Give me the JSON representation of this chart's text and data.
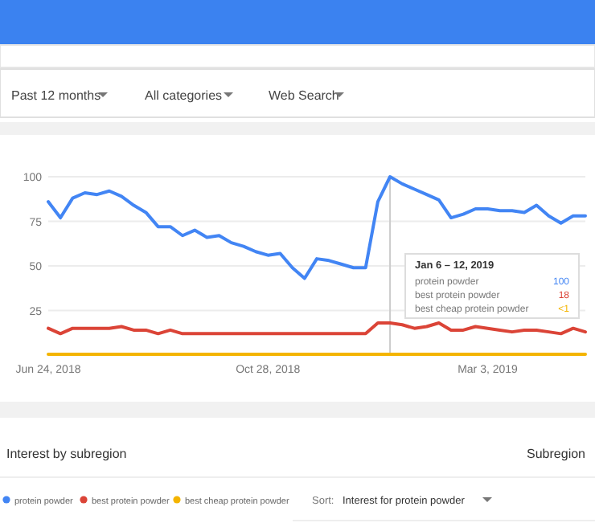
{
  "chart_data": {
    "type": "line",
    "x": [
      "2018-06-24",
      "2018-07-01",
      "2018-07-08",
      "2018-07-15",
      "2018-07-22",
      "2018-07-29",
      "2018-08-05",
      "2018-08-12",
      "2018-08-19",
      "2018-08-26",
      "2018-09-02",
      "2018-09-09",
      "2018-09-16",
      "2018-09-23",
      "2018-09-30",
      "2018-10-07",
      "2018-10-14",
      "2018-10-21",
      "2018-10-28",
      "2018-11-04",
      "2018-11-11",
      "2018-11-18",
      "2018-11-25",
      "2018-12-02",
      "2018-12-09",
      "2018-12-16",
      "2018-12-23",
      "2018-12-30",
      "2019-01-06",
      "2019-01-13",
      "2019-01-20",
      "2019-01-27",
      "2019-02-03",
      "2019-02-10",
      "2019-02-17",
      "2019-02-24",
      "2019-03-03",
      "2019-03-10",
      "2019-03-17",
      "2019-03-24",
      "2019-03-31",
      "2019-04-07",
      "2019-04-14",
      "2019-04-21",
      "2019-04-28"
    ],
    "series": [
      {
        "name": "protein powder",
        "color": "#4285f4",
        "values": [
          86,
          77,
          88,
          91,
          90,
          92,
          89,
          84,
          80,
          72,
          72,
          67,
          70,
          66,
          67,
          63,
          61,
          58,
          56,
          57,
          49,
          43,
          54,
          53,
          51,
          49,
          49,
          86,
          100,
          96,
          93,
          90,
          87,
          77,
          79,
          82,
          82,
          81,
          81,
          80,
          84,
          78,
          74,
          78,
          78
        ]
      },
      {
        "name": "best protein powder",
        "color": "#db4437",
        "values": [
          15,
          12,
          15,
          15,
          15,
          15,
          16,
          14,
          14,
          12,
          14,
          12,
          12,
          12,
          12,
          12,
          12,
          12,
          12,
          12,
          12,
          12,
          12,
          12,
          12,
          12,
          12,
          18,
          18,
          17,
          15,
          16,
          18,
          14,
          14,
          16,
          15,
          14,
          13,
          14,
          14,
          13,
          12,
          15,
          13
        ]
      },
      {
        "name": "best cheap protein powder",
        "color": "#f4b400",
        "values": [
          0.5,
          0.5,
          0.5,
          0.5,
          0.5,
          0.5,
          0.5,
          0.5,
          0.5,
          0.5,
          0.5,
          0.5,
          0.5,
          0.5,
          0.5,
          0.5,
          0.5,
          0.5,
          0.5,
          0.5,
          0.5,
          0.5,
          0.5,
          0.5,
          0.5,
          0.5,
          0.5,
          0.5,
          0.5,
          0.5,
          0.5,
          0.5,
          0.5,
          0.5,
          0.5,
          0.5,
          0.5,
          0.5,
          0.5,
          0.5,
          0.5,
          0.5,
          0.5,
          0.5,
          0.5
        ]
      }
    ],
    "xlim": [
      "2018-06-24",
      "2019-04-28"
    ],
    "xticks": [
      {
        "value": "2018-06-24",
        "label": "Jun 24, 2018"
      },
      {
        "value": "2018-10-28",
        "label": "Oct 28, 2018"
      },
      {
        "value": "2019-03-03",
        "label": "Mar 3, 2019"
      }
    ],
    "ylim": [
      0,
      100
    ],
    "yticks": [
      25,
      50,
      75,
      100
    ],
    "grid": "y",
    "legend": "bottom",
    "marker": "none",
    "line_style": "solid",
    "ref_lines": [
      {
        "axis": "x",
        "value": "2019-01-06",
        "color": "#cccccc"
      }
    ],
    "annotations": [
      "Jan 6 – 12, 2019",
      "100",
      "18",
      "<1",
      "Past 12 months",
      "All categories",
      "Web Search",
      "Interest by subregion",
      "Subregion",
      "Sort:",
      "Interest for protein powder"
    ]
  }
}
